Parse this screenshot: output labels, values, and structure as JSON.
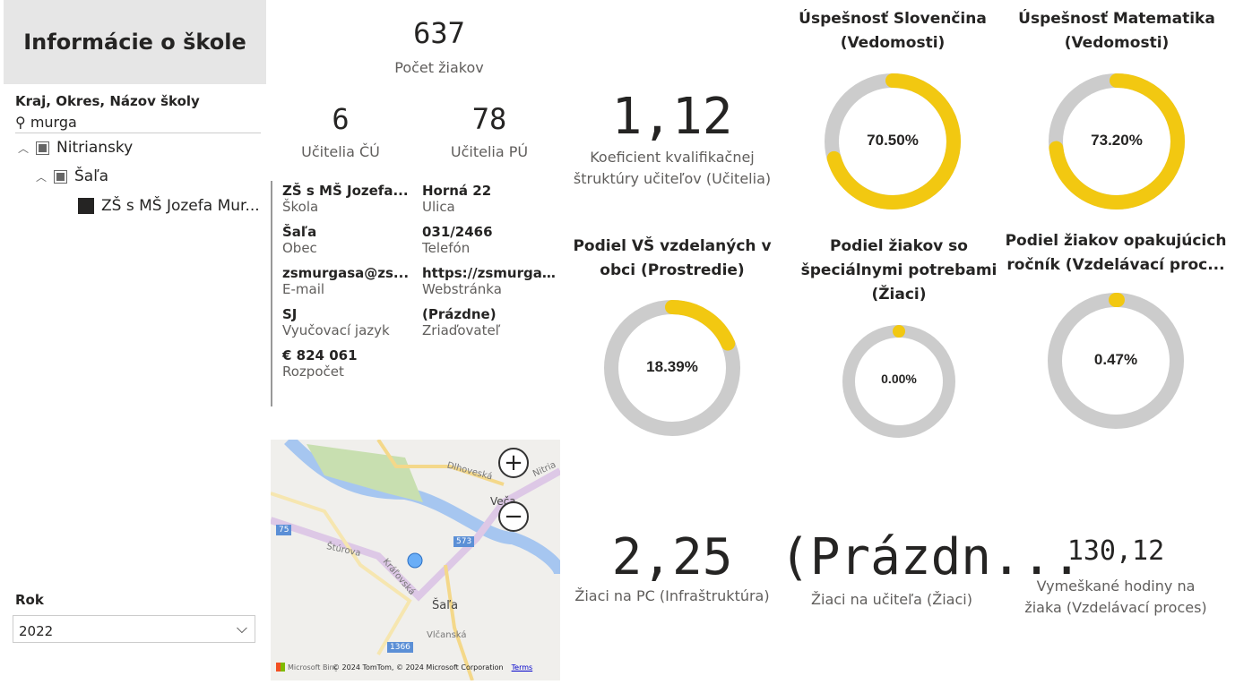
{
  "header": {
    "title": "Informácie o škole"
  },
  "slicer": {
    "label": "Kraj, Okres, Názov školy",
    "search": "murga",
    "items": [
      {
        "label": "Nitriansky"
      },
      {
        "label": "Šaľa"
      },
      {
        "label": "ZŠ s MŠ Jozefa Mur..."
      }
    ]
  },
  "year": {
    "label": "Rok",
    "value": "2022"
  },
  "kpis": {
    "students": {
      "value": "637",
      "label": "Počet žiakov"
    },
    "teachers_cu": {
      "value": "6",
      "label": "Učitelia ČÚ"
    },
    "teachers_pu": {
      "value": "78",
      "label": "Učitelia PÚ"
    },
    "coef": {
      "value": "1,12",
      "label1": "Koeficient kvalifikačnej",
      "label2": "štruktúry učiteľov (Učitelia)"
    },
    "pc": {
      "value": "2,25",
      "label": "Žiaci na PC (Infraštruktúra)"
    },
    "per_teacher": {
      "value": "(Prázdn...",
      "label": "Žiaci na učiteľa (Žiaci)"
    },
    "absence": {
      "value": "130,12",
      "label1": "Vymeškané hodiny na",
      "label2": "žiaka (Vzdelávací proces)"
    }
  },
  "card": [
    {
      "value": "ZŠ s MŠ Jozefa...",
      "key": "Škola"
    },
    {
      "value": "Horná 22",
      "key": "Ulica"
    },
    {
      "value": "Šaľa",
      "key": "Obec"
    },
    {
      "value": "031/2466",
      "key": "Telefón"
    },
    {
      "value": "zsmurgasa@zs...",
      "key": "E-mail"
    },
    {
      "value": "https://zsmurgas...",
      "key": "Webstránka"
    },
    {
      "value": "SJ",
      "key": "Vyučovací jazyk"
    },
    {
      "value": "(Prázdne)",
      "key": "Zriaďovateľ"
    },
    {
      "value": "€ 824 061",
      "key": "Rozpočet"
    }
  ],
  "gauges": [
    {
      "t1": "Úspešnosť Slovenčina",
      "t2": "(Vedomosti)",
      "label": "70.50%",
      "value": 70.5
    },
    {
      "t1": "Úspešnosť Matematika",
      "t2": "(Vedomosti)",
      "label": "73.20%",
      "value": 73.2
    },
    {
      "t1": "Podiel VŠ vzdelaných v",
      "t2": "obci (Prostredie)",
      "label": "18.39%",
      "value": 18.39
    },
    {
      "t1": "Podiel žiakov so",
      "t2": "špeciálnymi potrebami",
      "t3": "(Žiaci)",
      "label": "0.00%",
      "value": 0
    },
    {
      "t1": "Podiel žiakov opakujúcich",
      "t2": "ročník (Vzdelávací proc...",
      "label": "0.47%",
      "value": 0.47
    }
  ],
  "colors": {
    "arc": "#f2c811",
    "track": "#cccccc"
  },
  "map": {
    "labels": [
      "Dlhoveská",
      "Veča",
      "Nitria",
      "75",
      "573",
      "Štúrova",
      "Kráľovská",
      "Šaľa",
      "Vlčanská",
      "1366"
    ],
    "attribution": "© 2024 TomTom, © 2024 Microsoft Corporation",
    "terms": "Terms",
    "brand": "Microsoft Bing"
  }
}
